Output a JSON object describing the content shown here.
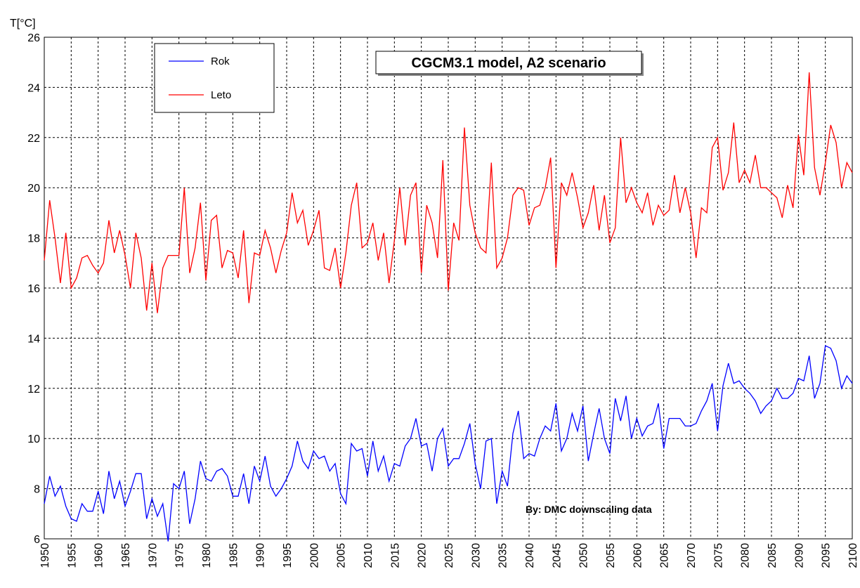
{
  "chart_data": {
    "type": "line",
    "ylabel": "T[°C]",
    "annotations": [
      "CGCM3.1 model, A2 scenario",
      "By: DMC downscaling data"
    ],
    "legend": "upper left",
    "grid": true,
    "xlim": [
      1950,
      2100
    ],
    "xticks": [
      1950,
      1955,
      1960,
      1965,
      1970,
      1975,
      1980,
      1985,
      1990,
      1995,
      2000,
      2005,
      2010,
      2015,
      2020,
      2025,
      2030,
      2035,
      2040,
      2045,
      2050,
      2055,
      2060,
      2065,
      2070,
      2075,
      2080,
      2085,
      2090,
      2095,
      2100
    ],
    "ylim": [
      6,
      26
    ],
    "yticks": [
      6,
      8,
      10,
      12,
      14,
      16,
      18,
      20,
      22,
      24,
      26
    ],
    "x": [
      1950,
      1951,
      1952,
      1953,
      1954,
      1955,
      1956,
      1957,
      1958,
      1959,
      1960,
      1961,
      1962,
      1963,
      1964,
      1965,
      1966,
      1967,
      1968,
      1969,
      1970,
      1971,
      1972,
      1973,
      1974,
      1975,
      1976,
      1977,
      1978,
      1979,
      1980,
      1981,
      1982,
      1983,
      1984,
      1985,
      1986,
      1987,
      1988,
      1989,
      1990,
      1991,
      1992,
      1993,
      1994,
      1995,
      1996,
      1997,
      1998,
      1999,
      2000,
      2001,
      2002,
      2003,
      2004,
      2005,
      2006,
      2007,
      2008,
      2009,
      2010,
      2011,
      2012,
      2013,
      2014,
      2015,
      2016,
      2017,
      2018,
      2019,
      2020,
      2021,
      2022,
      2023,
      2024,
      2025,
      2026,
      2027,
      2028,
      2029,
      2030,
      2031,
      2032,
      2033,
      2034,
      2035,
      2036,
      2037,
      2038,
      2039,
      2040,
      2041,
      2042,
      2043,
      2044,
      2045,
      2046,
      2047,
      2048,
      2049,
      2050,
      2051,
      2052,
      2053,
      2054,
      2055,
      2056,
      2057,
      2058,
      2059,
      2060,
      2061,
      2062,
      2063,
      2064,
      2065,
      2066,
      2067,
      2068,
      2069,
      2070,
      2071,
      2072,
      2073,
      2074,
      2075,
      2076,
      2077,
      2078,
      2079,
      2080,
      2081,
      2082,
      2083,
      2084,
      2085,
      2086,
      2087,
      2088,
      2089,
      2090,
      2091,
      2092,
      2093,
      2094,
      2095,
      2096,
      2097,
      2098,
      2099,
      2100
    ],
    "series": [
      {
        "name": "Rok",
        "color": "#0000ff",
        "values": [
          7.4,
          8.5,
          7.7,
          8.1,
          7.3,
          6.8,
          6.7,
          7.4,
          7.1,
          7.1,
          7.9,
          7.0,
          8.7,
          7.6,
          8.3,
          7.3,
          7.9,
          8.6,
          8.6,
          6.8,
          7.6,
          6.9,
          7.4,
          5.9,
          8.2,
          8.0,
          8.7,
          6.6,
          7.6,
          9.1,
          8.4,
          8.3,
          8.7,
          8.8,
          8.5,
          7.7,
          7.7,
          8.6,
          7.4,
          8.9,
          8.3,
          9.3,
          8.1,
          7.7,
          8.0,
          8.4,
          8.9,
          9.9,
          9.1,
          8.8,
          9.5,
          9.2,
          9.3,
          8.7,
          9.0,
          7.8,
          7.4,
          9.8,
          9.5,
          9.6,
          8.5,
          9.9,
          8.7,
          9.3,
          8.3,
          9.0,
          8.9,
          9.7,
          10.0,
          10.8,
          9.7,
          9.8,
          8.7,
          10.0,
          10.4,
          8.9,
          9.2,
          9.2,
          9.8,
          10.6,
          9.0,
          8.0,
          9.9,
          10.0,
          7.4,
          8.7,
          8.1,
          10.2,
          11.1,
          9.2,
          9.4,
          9.3,
          10.0,
          10.5,
          10.3,
          11.4,
          9.5,
          10.0,
          11.0,
          10.3,
          11.3,
          9.1,
          10.2,
          11.2,
          10.0,
          9.4,
          11.6,
          10.7,
          11.7,
          10.0,
          10.8,
          10.1,
          10.5,
          10.6,
          11.4,
          9.6,
          10.8,
          10.8,
          10.8,
          10.5,
          10.5,
          10.6,
          11.1,
          11.5,
          12.2,
          10.3,
          12.1,
          13.0,
          12.2,
          12.3,
          12.0,
          11.8,
          11.5,
          11.0,
          11.3,
          11.5,
          12.0,
          11.6,
          11.6,
          11.8,
          12.4,
          12.3,
          13.3,
          11.6,
          12.2,
          13.7,
          13.6,
          13.1,
          12.0,
          12.5,
          12.2
        ]
      },
      {
        "name": "Leto",
        "color": "#ff0000",
        "values": [
          17.1,
          19.5,
          18.0,
          16.2,
          18.2,
          16.0,
          16.4,
          17.2,
          17.3,
          16.9,
          16.6,
          17.0,
          18.7,
          17.4,
          18.3,
          17.3,
          16.0,
          18.2,
          17.2,
          15.1,
          17.0,
          15.0,
          16.8,
          17.3,
          17.3,
          17.3,
          20.0,
          16.6,
          17.6,
          19.4,
          16.3,
          18.7,
          18.9,
          16.8,
          17.5,
          17.4,
          16.4,
          18.3,
          15.4,
          17.4,
          17.3,
          18.3,
          17.6,
          16.6,
          17.5,
          18.2,
          19.8,
          18.6,
          19.1,
          17.7,
          18.3,
          19.1,
          16.8,
          16.7,
          17.6,
          16.0,
          17.4,
          19.3,
          20.2,
          17.6,
          17.8,
          18.6,
          17.1,
          18.2,
          16.2,
          17.9,
          20.0,
          17.7,
          19.7,
          20.2,
          16.6,
          19.3,
          18.6,
          17.2,
          21.1,
          15.9,
          18.6,
          17.9,
          22.4,
          19.3,
          18.2,
          17.6,
          17.4,
          21.0,
          16.8,
          17.2,
          18.0,
          19.7,
          20.0,
          19.9,
          18.5,
          19.2,
          19.3,
          20.0,
          21.2,
          16.8,
          20.2,
          19.7,
          20.6,
          19.6,
          18.4,
          19.0,
          20.1,
          18.3,
          19.7,
          17.8,
          18.4,
          22.0,
          19.4,
          20.0,
          19.4,
          19.0,
          19.8,
          18.5,
          19.3,
          18.9,
          19.1,
          20.5,
          19.0,
          20.0,
          19.0,
          17.2,
          19.2,
          19.0,
          21.6,
          22.0,
          19.9,
          20.6,
          22.6,
          20.2,
          20.7,
          20.2,
          21.3,
          20.0,
          20.0,
          19.8,
          19.6,
          18.8,
          20.1,
          19.2,
          22.1,
          20.5,
          24.6,
          20.8,
          19.7,
          21.0,
          22.5,
          21.8,
          20.0,
          21.0,
          20.6
        ]
      }
    ]
  }
}
